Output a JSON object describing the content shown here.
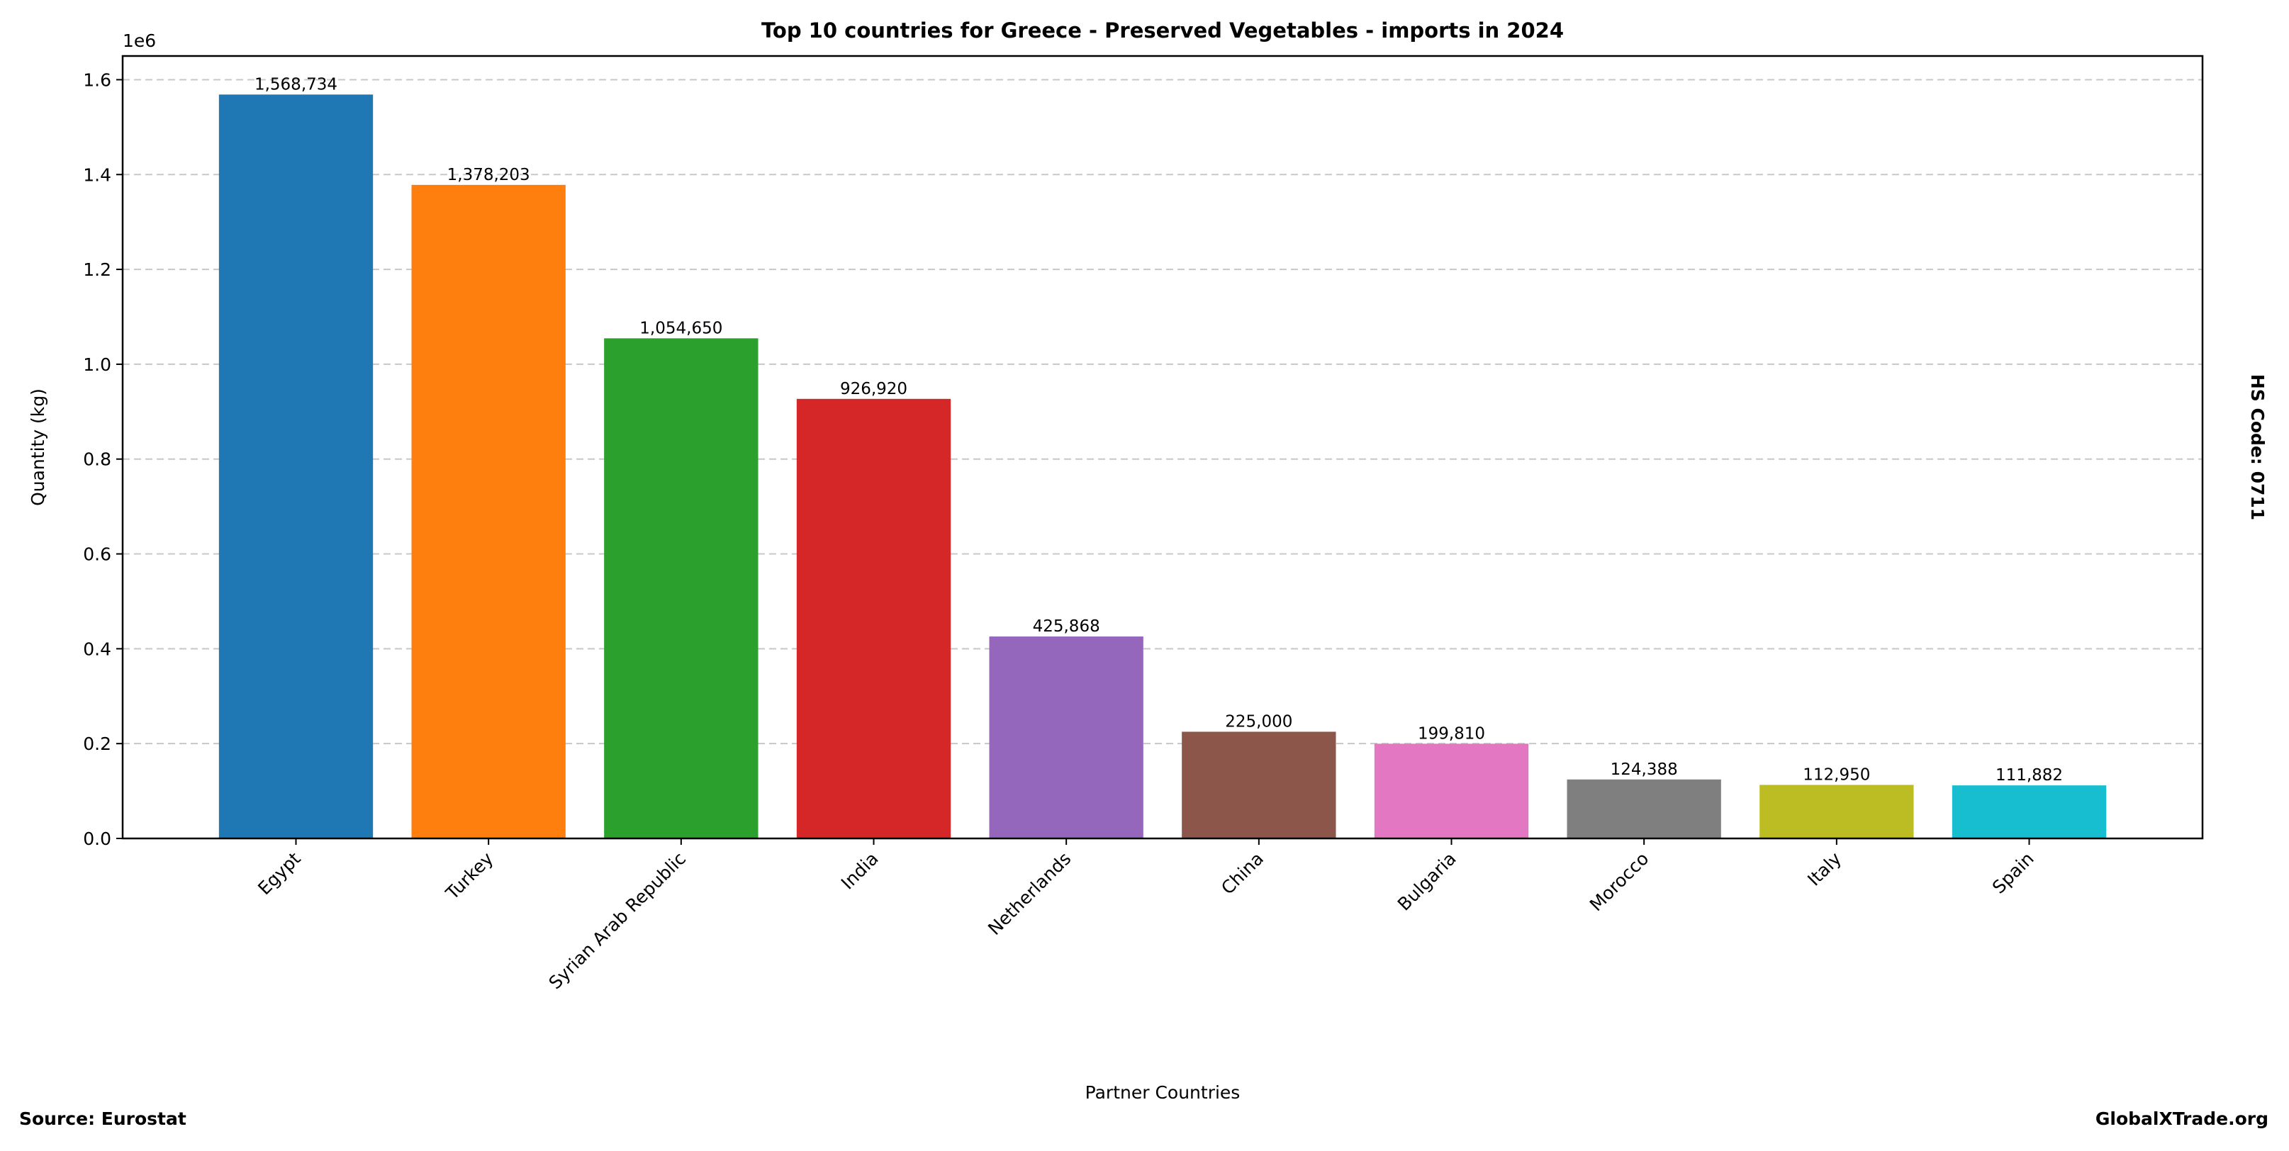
{
  "chart_data": {
    "type": "bar",
    "title": "Top 10 countries for Greece - Preserved Vegetables - imports in 2024",
    "xlabel": "Partner Countries",
    "ylabel": "Quantity (kg)",
    "y_offset_label": "1e6",
    "categories": [
      "Egypt",
      "Turkey",
      "Syrian Arab Republic",
      "India",
      "Netherlands",
      "China",
      "Bulgaria",
      "Morocco",
      "Italy",
      "Spain"
    ],
    "values": [
      1568734,
      1378203,
      1054650,
      926920,
      425868,
      225000,
      199810,
      124388,
      112950,
      111882
    ],
    "value_labels": [
      "1,568,734",
      "1,378,203",
      "1,054,650",
      "926,920",
      "425,868",
      "225,000",
      "199,810",
      "124,388",
      "112,950",
      "111,882"
    ],
    "colors": [
      "#1f77b4",
      "#ff7f0e",
      "#2ca02c",
      "#d62728",
      "#9467bd",
      "#8c564b",
      "#e377c2",
      "#7f7f7f",
      "#bcbd22",
      "#17becf"
    ],
    "ylim": [
      0,
      1650000
    ],
    "yticks": [
      0,
      200000,
      400000,
      600000,
      800000,
      1000000,
      1200000,
      1400000,
      1600000
    ],
    "ytick_labels": [
      "0.0",
      "0.2",
      "0.4",
      "0.6",
      "0.8",
      "1.0",
      "1.2",
      "1.4",
      "1.6"
    ],
    "grid": "y-dashed",
    "legend": "none"
  },
  "annotations": {
    "source": "Source: Eurostat",
    "brand": "GlobalXTrade.org",
    "hs_code": "HS Code: 0711"
  }
}
